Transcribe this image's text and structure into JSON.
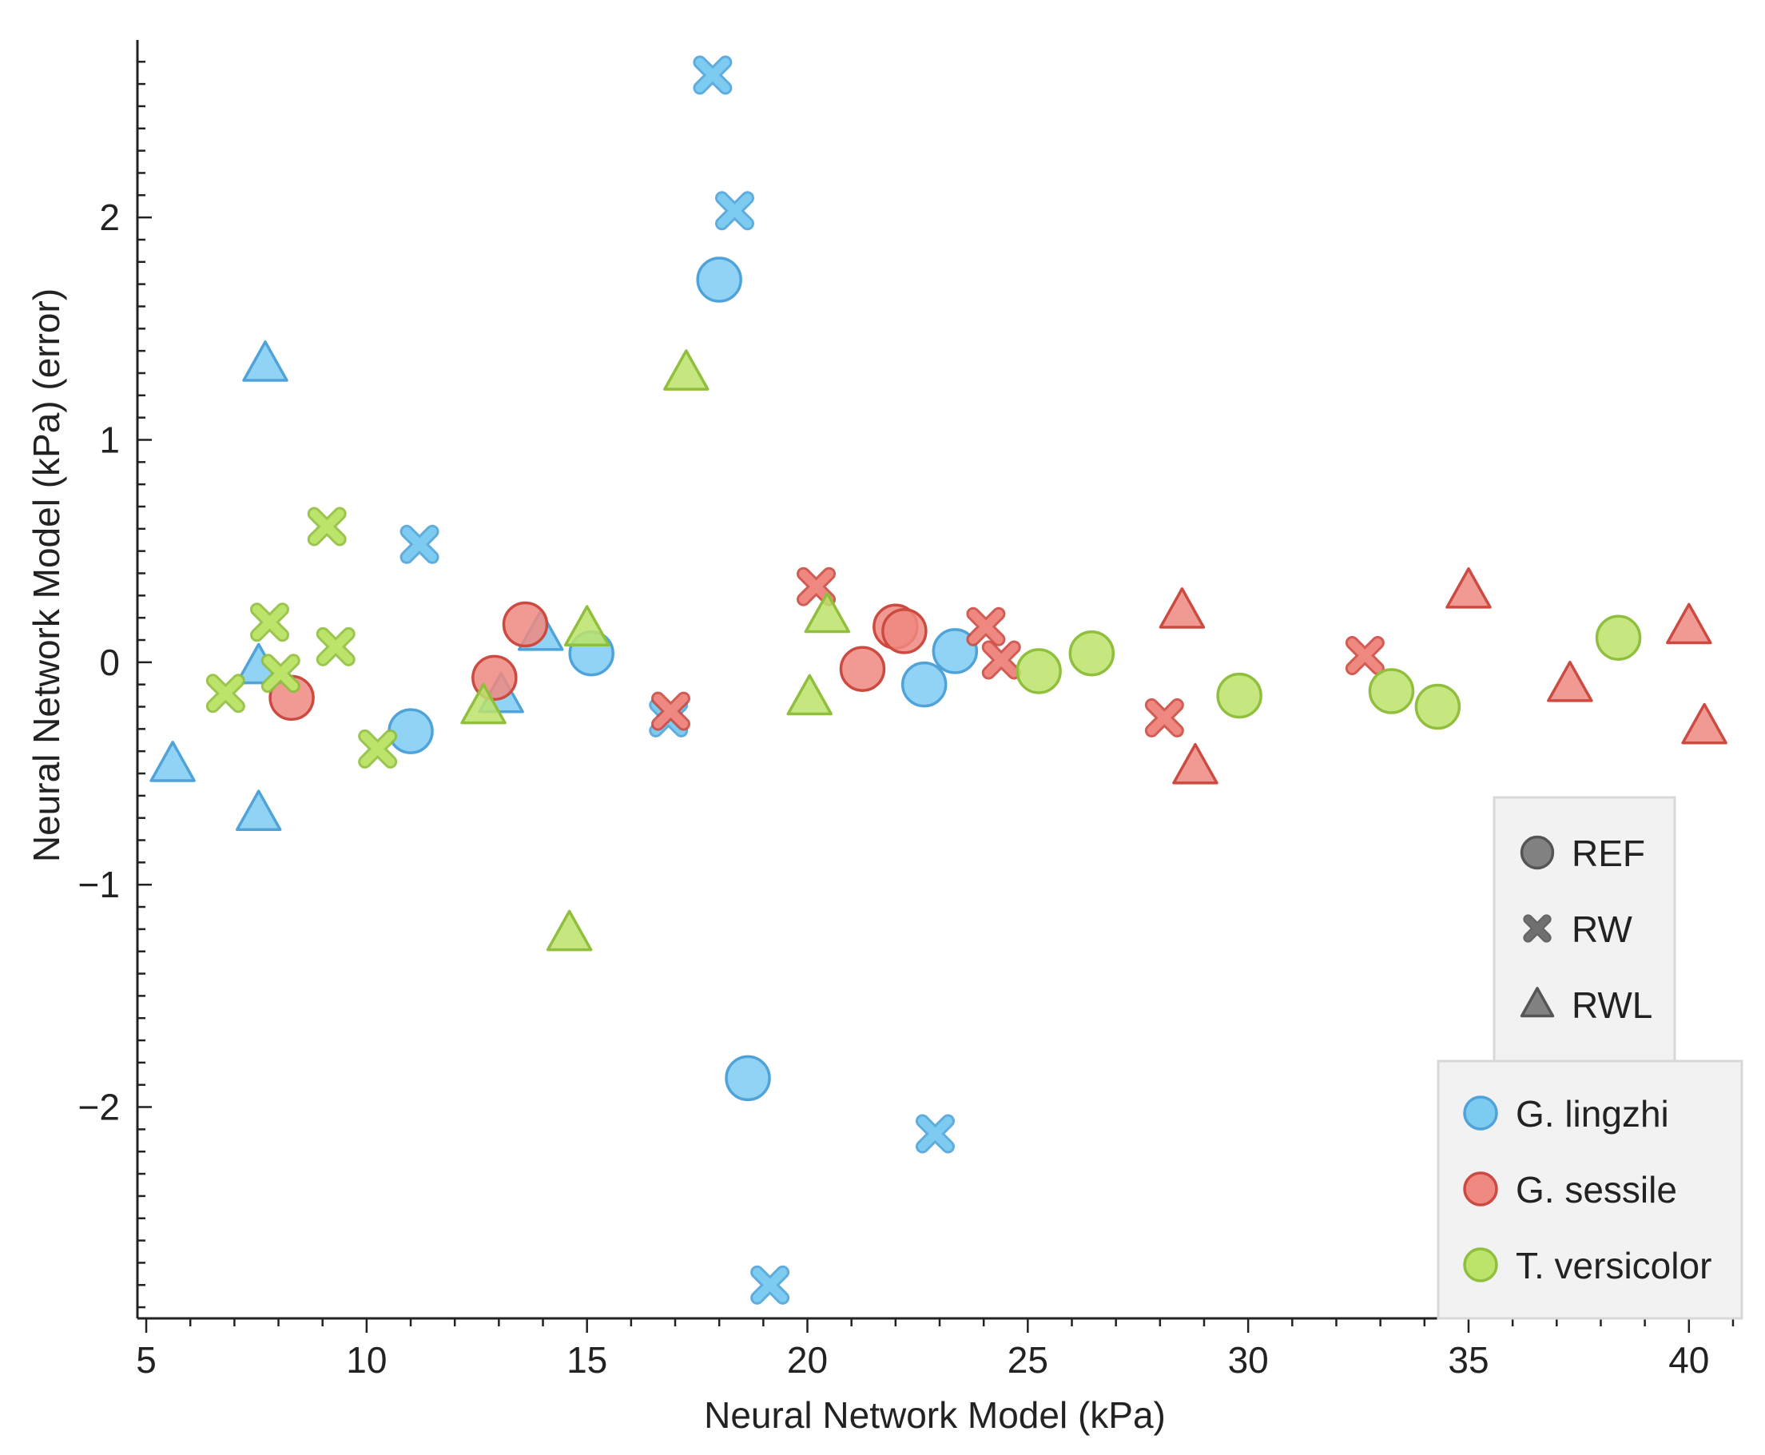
{
  "chart_data": {
    "type": "scatter",
    "title": "",
    "xlabel": "Neural Network Model (kPa)",
    "ylabel": "Neural Network Model (kPa) (error)",
    "xlim": [
      4.8,
      41.2
    ],
    "ylim": [
      -2.95,
      2.78
    ],
    "xticks": [
      5,
      10,
      15,
      20,
      25,
      30,
      35,
      40
    ],
    "xtick_labels": [
      "5",
      "10",
      "15",
      "20",
      "25",
      "30",
      "35",
      "40"
    ],
    "yticks": [
      -2,
      -1,
      0,
      1,
      2
    ],
    "ytick_labels": [
      "−2",
      "−1",
      "0",
      "1",
      "2"
    ],
    "grid": false,
    "marker_legend": {
      "placement": "right",
      "entries": [
        {
          "marker": "circle",
          "label": "REF"
        },
        {
          "marker": "x",
          "label": "RW"
        },
        {
          "marker": "triangle",
          "label": "RWL"
        }
      ]
    },
    "color_legend": {
      "placement": "bottom-right",
      "entries": [
        {
          "color": "#7ecbf2",
          "label": "G. lingzhi"
        },
        {
          "color": "#ef8880",
          "label": "G. sessile"
        },
        {
          "color": "#bce36a",
          "label": "T. versicolor"
        }
      ]
    },
    "series": [
      {
        "name": "G. lingzhi",
        "color": "#7ecbf2",
        "edge": "#4fa3d8",
        "points": [
          {
            "x": 18.0,
            "y": 1.72,
            "marker": "circle"
          },
          {
            "x": 18.65,
            "y": -1.87,
            "marker": "circle"
          },
          {
            "x": 11.0,
            "y": -0.31,
            "marker": "circle"
          },
          {
            "x": 15.1,
            "y": 0.04,
            "marker": "circle"
          },
          {
            "x": 22.65,
            "y": -0.1,
            "marker": "circle"
          },
          {
            "x": 23.35,
            "y": 0.05,
            "marker": "circle"
          },
          {
            "x": 17.85,
            "y": 2.64,
            "marker": "x"
          },
          {
            "x": 18.35,
            "y": 2.03,
            "marker": "x"
          },
          {
            "x": 11.2,
            "y": 0.53,
            "marker": "x"
          },
          {
            "x": 16.85,
            "y": -0.25,
            "marker": "x"
          },
          {
            "x": 22.9,
            "y": -2.12,
            "marker": "x"
          },
          {
            "x": 19.15,
            "y": -2.8,
            "marker": "x"
          },
          {
            "x": 7.7,
            "y": 1.34,
            "marker": "triangle"
          },
          {
            "x": 5.6,
            "y": -0.46,
            "marker": "triangle"
          },
          {
            "x": 7.55,
            "y": -0.02,
            "marker": "triangle"
          },
          {
            "x": 7.55,
            "y": -0.68,
            "marker": "triangle"
          },
          {
            "x": 13.05,
            "y": -0.15,
            "marker": "triangle"
          },
          {
            "x": 13.95,
            "y": 0.13,
            "marker": "triangle"
          }
        ]
      },
      {
        "name": "G. sessile",
        "color": "#ef8880",
        "edge": "#cc4a40",
        "points": [
          {
            "x": 8.3,
            "y": -0.16,
            "marker": "circle"
          },
          {
            "x": 12.9,
            "y": -0.07,
            "marker": "circle"
          },
          {
            "x": 13.6,
            "y": 0.17,
            "marker": "circle"
          },
          {
            "x": 21.25,
            "y": -0.03,
            "marker": "circle"
          },
          {
            "x": 22.0,
            "y": 0.16,
            "marker": "circle"
          },
          {
            "x": 22.2,
            "y": 0.14,
            "marker": "circle"
          },
          {
            "x": 16.9,
            "y": -0.22,
            "marker": "x"
          },
          {
            "x": 20.2,
            "y": 0.34,
            "marker": "x"
          },
          {
            "x": 24.05,
            "y": 0.16,
            "marker": "x"
          },
          {
            "x": 24.4,
            "y": 0.01,
            "marker": "x"
          },
          {
            "x": 28.1,
            "y": -0.25,
            "marker": "x"
          },
          {
            "x": 32.65,
            "y": 0.03,
            "marker": "x"
          },
          {
            "x": 28.5,
            "y": 0.23,
            "marker": "triangle"
          },
          {
            "x": 28.8,
            "y": -0.47,
            "marker": "triangle"
          },
          {
            "x": 35.0,
            "y": 0.32,
            "marker": "triangle"
          },
          {
            "x": 37.3,
            "y": -0.1,
            "marker": "triangle"
          },
          {
            "x": 40.0,
            "y": 0.16,
            "marker": "triangle"
          },
          {
            "x": 40.35,
            "y": -0.29,
            "marker": "triangle"
          }
        ]
      },
      {
        "name": "T. versicolor",
        "color": "#bce36a",
        "edge": "#8fbf3c",
        "points": [
          {
            "x": 25.25,
            "y": -0.04,
            "marker": "circle"
          },
          {
            "x": 26.45,
            "y": 0.04,
            "marker": "circle"
          },
          {
            "x": 29.8,
            "y": -0.15,
            "marker": "circle"
          },
          {
            "x": 33.25,
            "y": -0.13,
            "marker": "circle"
          },
          {
            "x": 34.3,
            "y": -0.2,
            "marker": "circle"
          },
          {
            "x": 38.4,
            "y": 0.11,
            "marker": "circle"
          },
          {
            "x": 9.1,
            "y": 0.61,
            "marker": "x"
          },
          {
            "x": 7.8,
            "y": 0.18,
            "marker": "x"
          },
          {
            "x": 9.3,
            "y": 0.07,
            "marker": "x"
          },
          {
            "x": 6.8,
            "y": -0.14,
            "marker": "x"
          },
          {
            "x": 10.25,
            "y": -0.39,
            "marker": "x"
          },
          {
            "x": 8.05,
            "y": -0.05,
            "marker": "x"
          },
          {
            "x": 17.25,
            "y": 1.3,
            "marker": "triangle"
          },
          {
            "x": 14.6,
            "y": -1.22,
            "marker": "triangle"
          },
          {
            "x": 15.0,
            "y": 0.15,
            "marker": "triangle"
          },
          {
            "x": 20.45,
            "y": 0.21,
            "marker": "triangle"
          },
          {
            "x": 20.05,
            "y": -0.16,
            "marker": "triangle"
          },
          {
            "x": 12.65,
            "y": -0.2,
            "marker": "triangle"
          }
        ]
      }
    ]
  }
}
